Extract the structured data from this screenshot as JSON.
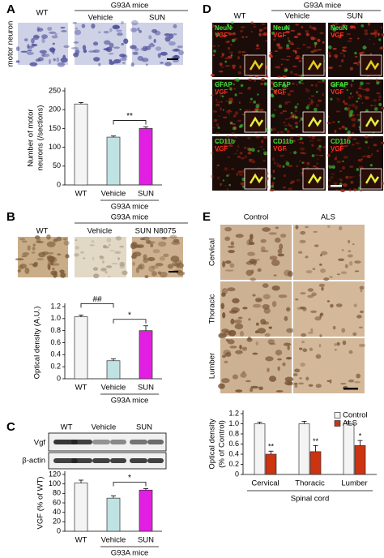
{
  "figure": {
    "panel_letters": [
      "A",
      "B",
      "C",
      "D",
      "E"
    ],
    "a_images": {
      "group": "G93A mice",
      "columns": [
        "WT",
        "Vehicle",
        "SUN"
      ],
      "row": "motor neuron"
    },
    "b_images": {
      "group": "G93A mice",
      "columns": [
        "WT",
        "Vehicle",
        "SUN N8075"
      ]
    },
    "c_blot": {
      "columns": [
        "WT",
        "Vehicle",
        "SUN"
      ],
      "rows": [
        "Vgf",
        "β-actin"
      ]
    },
    "d_images": {
      "group": "G93A mice",
      "columns": [
        "WT",
        "Vehicle",
        "SUN"
      ],
      "markers": [
        "NeuN",
        "GFAP",
        "CD11b"
      ],
      "counterstain": "VGF"
    },
    "e_images": {
      "columns": [
        "Control",
        "ALS"
      ],
      "rows": [
        "Cervical",
        "Thoracic",
        "Lumber"
      ]
    }
  },
  "chart_data": [
    {
      "type": "bar",
      "ylabel": [
        "Number of motor",
        "neurons (/sections)"
      ],
      "categories": [
        "WT",
        "Vehicle",
        "SUN"
      ],
      "values": [
        215,
        127,
        150
      ],
      "errors": [
        4,
        3,
        4
      ],
      "colors": [
        "#f4f4f4",
        "#bfe3e3",
        "#e21ee2"
      ],
      "ylim": [
        0,
        250
      ],
      "yticks": [
        0,
        50,
        100,
        150,
        200,
        250
      ],
      "group_label": "G93A mice",
      "group_span": [
        1,
        2
      ],
      "annotations": [
        {
          "text": "**",
          "from": 1,
          "to": 2
        }
      ]
    },
    {
      "type": "bar",
      "ylabel": [
        "Optical density (A.U.)"
      ],
      "categories": [
        "WT",
        "Vehicle",
        "SUN"
      ],
      "values": [
        1.03,
        0.3,
        0.8
      ],
      "errors": [
        0.03,
        0.03,
        0.08
      ],
      "colors": [
        "#f4f4f4",
        "#bfe3e3",
        "#e21ee2"
      ],
      "ylim": [
        0,
        1.2
      ],
      "yticks": [
        0,
        0.2,
        0.4,
        0.6,
        0.8,
        {
          "value": 1,
          "label": "1.0"
        },
        1.2
      ],
      "group_label": "G93A mice",
      "group_span": [
        1,
        2
      ],
      "annotations": [
        {
          "text": "##",
          "from": 0,
          "to": 1
        },
        {
          "text": "*",
          "from": 1,
          "to": 2
        }
      ]
    },
    {
      "type": "bar",
      "ylabel": [
        "VGF (% of WT)"
      ],
      "categories": [
        "WT",
        "Vehicle",
        "SUN"
      ],
      "values": [
        102,
        70,
        87
      ],
      "errors": [
        6,
        5,
        3
      ],
      "colors": [
        "#f4f4f4",
        "#bfe3e3",
        "#e21ee2"
      ],
      "ylim": [
        0,
        120
      ],
      "yticks": [
        0,
        20,
        40,
        60,
        80,
        100,
        120
      ],
      "group_label": "G93A mice",
      "group_span": [
        1,
        2
      ],
      "annotations": [
        {
          "text": "*",
          "from": 1,
          "to": 2
        }
      ]
    },
    {
      "type": "grouped-bar",
      "ylabel": [
        "Optical density",
        "(% of Control)"
      ],
      "xlabel": "Spinal cord",
      "categories": [
        "Cervical",
        "Thoracic",
        "Lumber"
      ],
      "series": [
        {
          "name": "Control",
          "color": "#f4f4f4",
          "values": [
            1,
            1,
            1
          ],
          "errors": [
            0.03,
            0.05,
            0.04
          ]
        },
        {
          "name": "ALS",
          "color": "#cc3311",
          "values": [
            0.4,
            0.45,
            0.57
          ],
          "errors": [
            0.06,
            0.12,
            0.1
          ],
          "significance": [
            "**",
            "**",
            "*"
          ]
        }
      ],
      "ylim": [
        0,
        1.2
      ],
      "yticks": [
        0,
        0.2,
        0.4,
        0.6,
        0.8,
        {
          "value": 1,
          "label": "1.0"
        },
        1.2
      ],
      "legend": "top-right"
    }
  ]
}
